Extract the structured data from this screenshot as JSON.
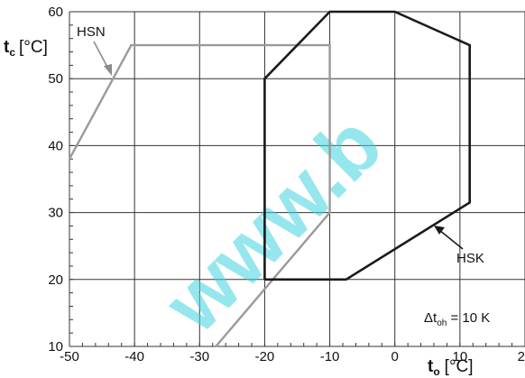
{
  "chart_data": {
    "type": "line",
    "xlim": [
      -50,
      20
    ],
    "ylim": [
      10,
      60
    ],
    "x_ticks": [
      -50,
      -40,
      -30,
      -20,
      -10,
      0,
      10,
      20
    ],
    "y_ticks": [
      10,
      20,
      30,
      40,
      50,
      60
    ],
    "grid": true,
    "xlabel": {
      "main": "t",
      "sub": "o",
      "unit": "[°C]"
    },
    "ylabel": {
      "main": "t",
      "sub": "c",
      "unit": "[°C]"
    },
    "series": [
      {
        "name": "HSN",
        "color": "#9a9a9a",
        "points": [
          [
            -50,
            38
          ],
          [
            -40.5,
            55
          ],
          [
            -10,
            55
          ],
          [
            -10,
            30
          ],
          [
            -27.5,
            10
          ]
        ]
      },
      {
        "name": "HSK",
        "color": "#1a1a1a",
        "points": [
          [
            -20,
            20
          ],
          [
            -7.5,
            20
          ],
          [
            11.5,
            31.5
          ],
          [
            11.5,
            55
          ],
          [
            0,
            60
          ],
          [
            -10,
            60
          ],
          [
            -20,
            50
          ],
          [
            -20,
            20
          ]
        ]
      }
    ],
    "annotations": {
      "delta": {
        "prefix": "Δt",
        "sub": "oh",
        "rest": " = 10 K"
      }
    }
  },
  "watermark": "www.b"
}
